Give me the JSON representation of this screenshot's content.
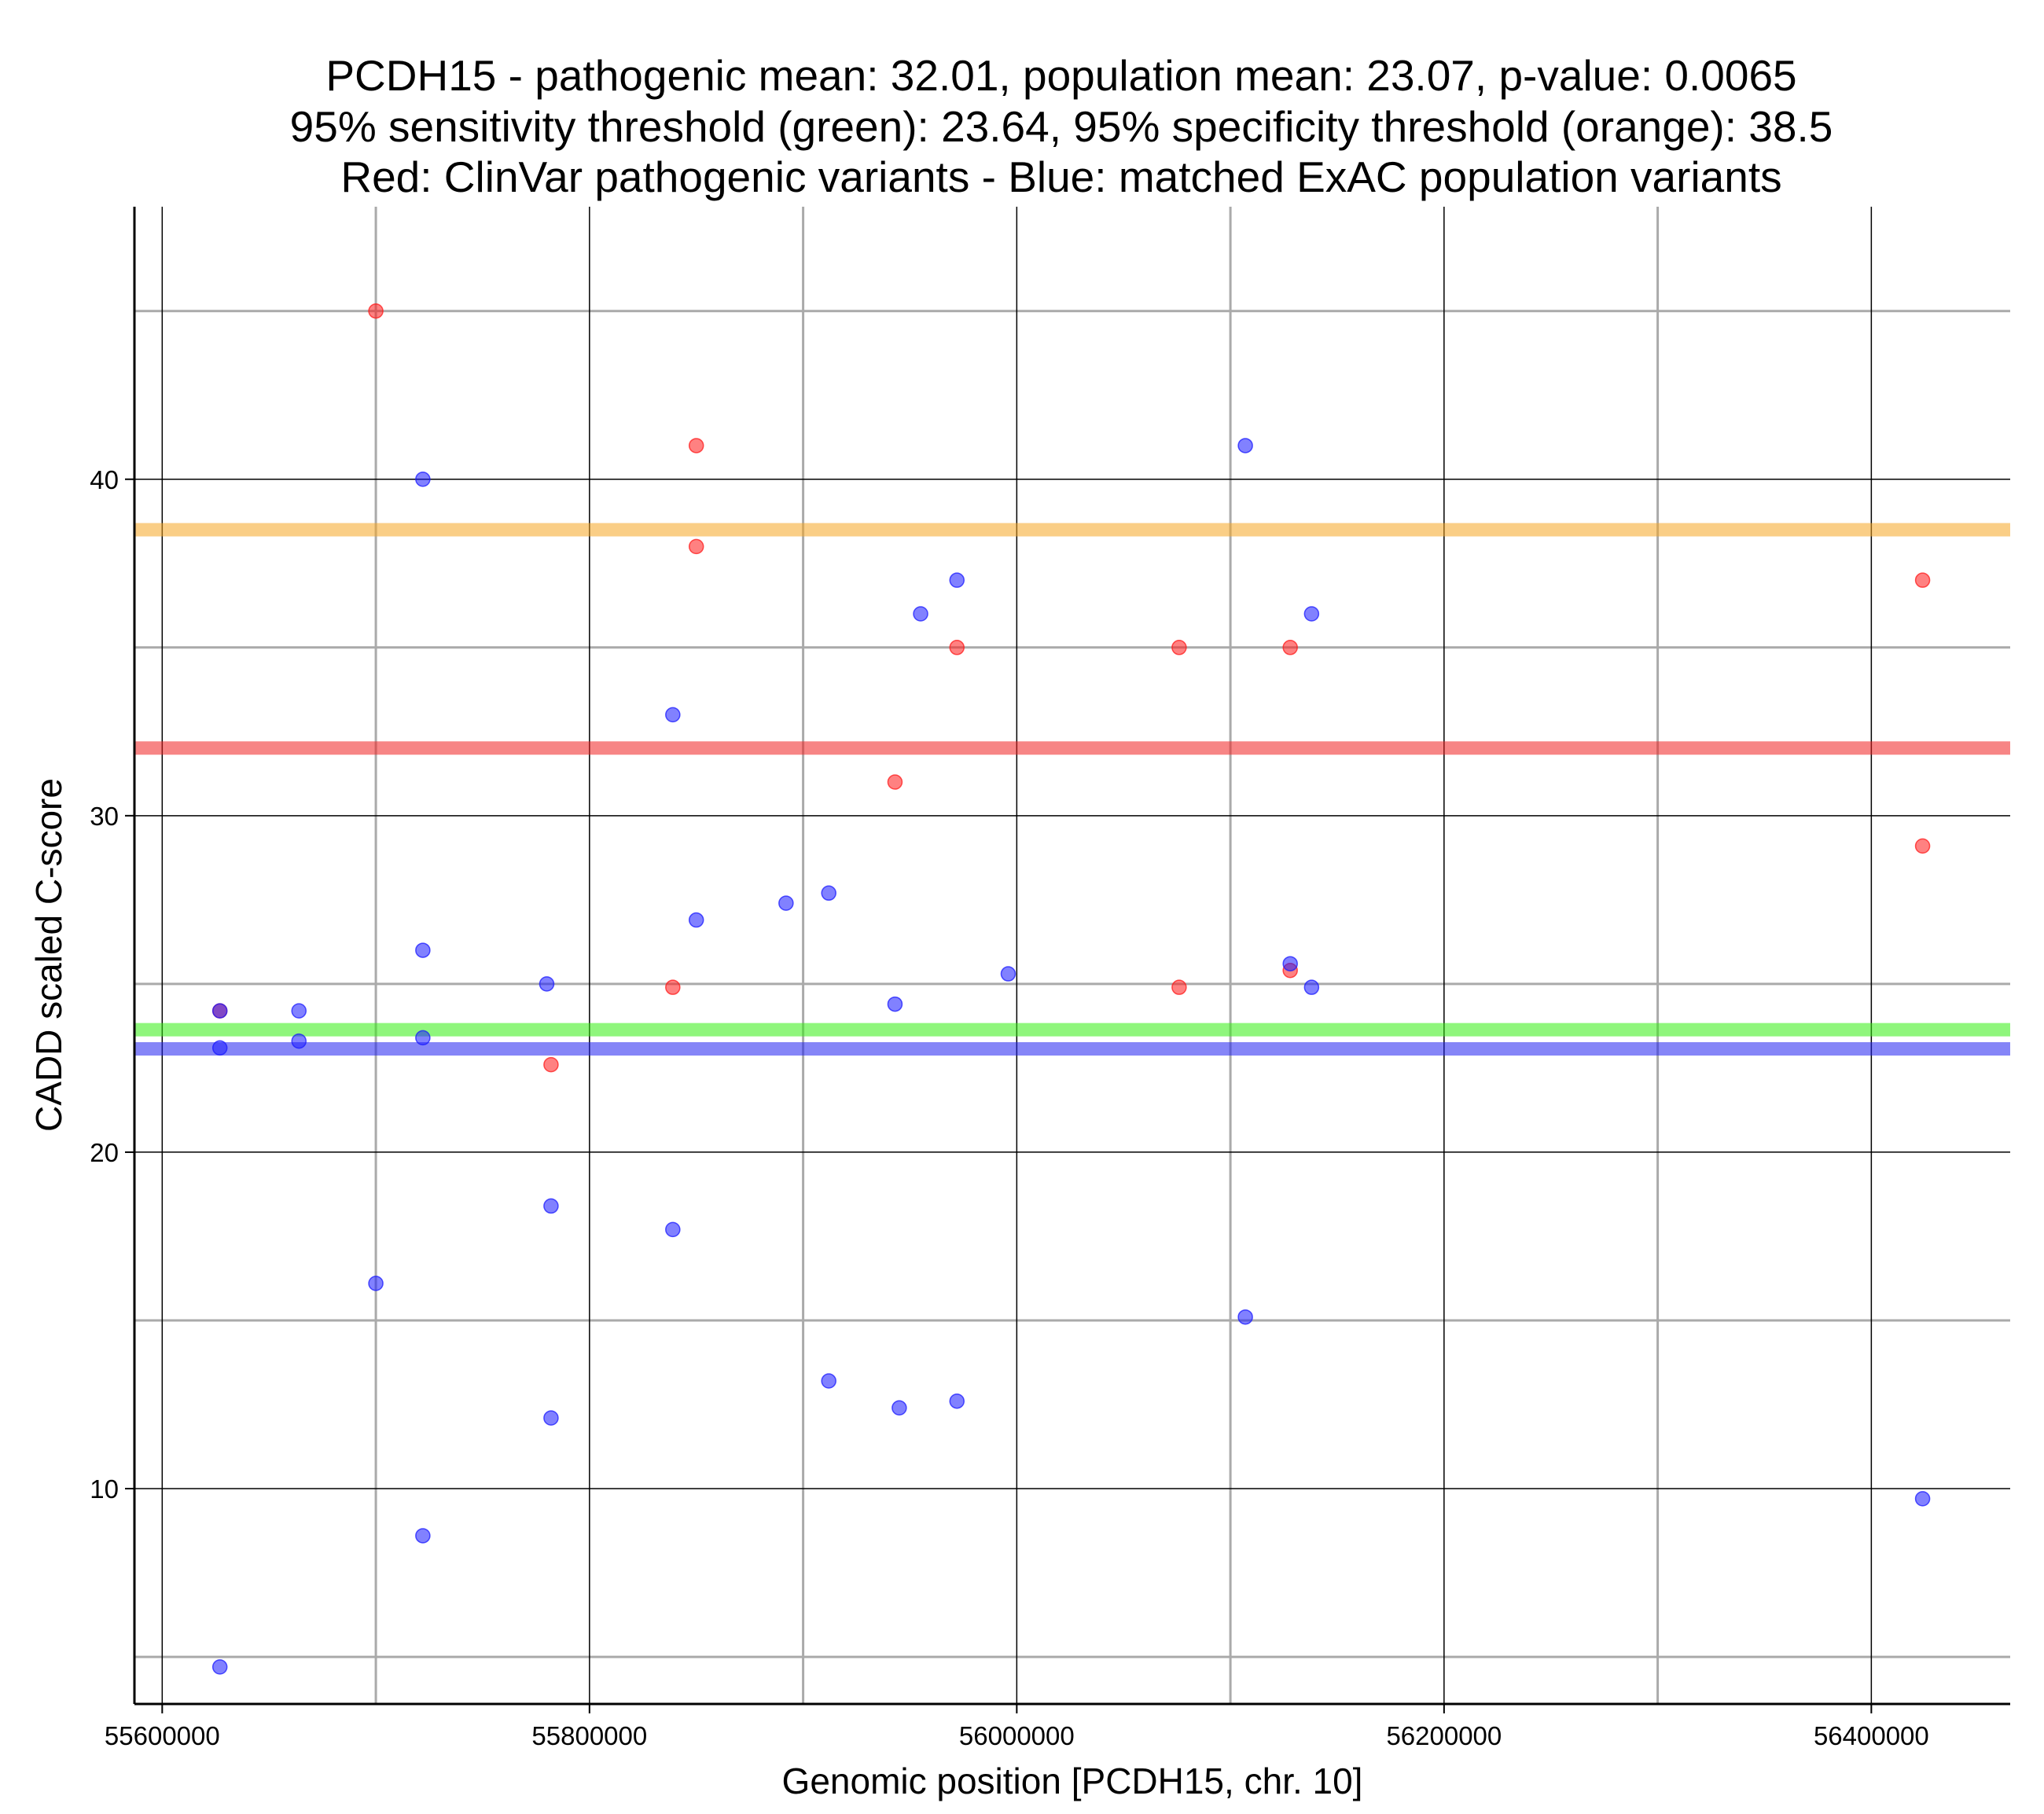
{
  "chart_data": {
    "type": "scatter",
    "title_lines": [
      "PCDH15 - pathogenic mean: 32.01, population mean: 23.07, p-value: 0.0065",
      "95% sensitivity threshold (green): 23.64, 95% specificity threshold (orange): 38.5",
      "Red: ClinVar pathogenic variants - Blue: matched ExAC population variants"
    ],
    "xlabel": "Genomic position [PCDH15, chr. 10]",
    "ylabel": "CADD scaled C-score",
    "xlim": [
      55587000,
      56465000
    ],
    "ylim": [
      3.6,
      48.1
    ],
    "x_major_ticks": [
      55600000,
      55800000,
      56000000,
      56200000,
      56400000
    ],
    "x_minor_ticks": [
      55700000,
      55900000,
      56100000,
      56300000
    ],
    "x_tick_labels": [
      "55600000",
      "55800000",
      "56000000",
      "56200000",
      "56400000"
    ],
    "y_major_ticks": [
      10,
      20,
      30,
      40
    ],
    "y_minor_ticks": [
      5,
      15,
      25,
      35,
      45
    ],
    "y_tick_labels": [
      "10",
      "20",
      "30",
      "40"
    ],
    "grid": true,
    "hlines": [
      {
        "name": "95% specificity threshold",
        "y": 38.5,
        "color": "#f5a623"
      },
      {
        "name": "pathogenic mean",
        "y": 32.01,
        "color": "#f02020"
      },
      {
        "name": "95% sensitivity threshold",
        "y": 23.64,
        "color": "#33ee11"
      },
      {
        "name": "population mean",
        "y": 23.07,
        "color": "#2020f0"
      }
    ],
    "series": [
      {
        "color": "#ff1a1a",
        "points": [
          [
            55627000,
            24.2
          ],
          [
            55700000,
            45.0
          ],
          [
            55782000,
            22.6
          ],
          [
            55839000,
            24.9
          ],
          [
            55850000,
            41.0
          ],
          [
            55850000,
            38.0
          ],
          [
            55943000,
            31.0
          ],
          [
            55972000,
            35.0
          ],
          [
            56076000,
            24.9
          ],
          [
            56076000,
            35.0
          ],
          [
            56128000,
            35.0
          ],
          [
            56128000,
            25.4
          ],
          [
            56424000,
            37.0
          ],
          [
            56424000,
            29.1
          ]
        ]
      },
      {
        "color": "#1a1aff",
        "points": [
          [
            55627000,
            23.1
          ],
          [
            55627000,
            24.2
          ],
          [
            55627000,
            4.7
          ],
          [
            55664000,
            24.2
          ],
          [
            55664000,
            23.3
          ],
          [
            55700000,
            16.1
          ],
          [
            55722000,
            40.0
          ],
          [
            55722000,
            26.0
          ],
          [
            55722000,
            23.4
          ],
          [
            55722000,
            8.6
          ],
          [
            55780000,
            25.0
          ],
          [
            55782000,
            18.4
          ],
          [
            55782000,
            12.1
          ],
          [
            55839000,
            33.0
          ],
          [
            55839000,
            17.7
          ],
          [
            55850000,
            26.9
          ],
          [
            55892000,
            27.4
          ],
          [
            55912000,
            27.7
          ],
          [
            55912000,
            13.2
          ],
          [
            55943000,
            24.4
          ],
          [
            55945000,
            12.4
          ],
          [
            55955000,
            36.0
          ],
          [
            55972000,
            37.0
          ],
          [
            55972000,
            12.6
          ],
          [
            55996000,
            25.3
          ],
          [
            56107000,
            41.0
          ],
          [
            56107000,
            15.1
          ],
          [
            56128000,
            25.6
          ],
          [
            56138000,
            36.0
          ],
          [
            56138000,
            24.9
          ],
          [
            56424000,
            9.7
          ]
        ]
      }
    ]
  }
}
